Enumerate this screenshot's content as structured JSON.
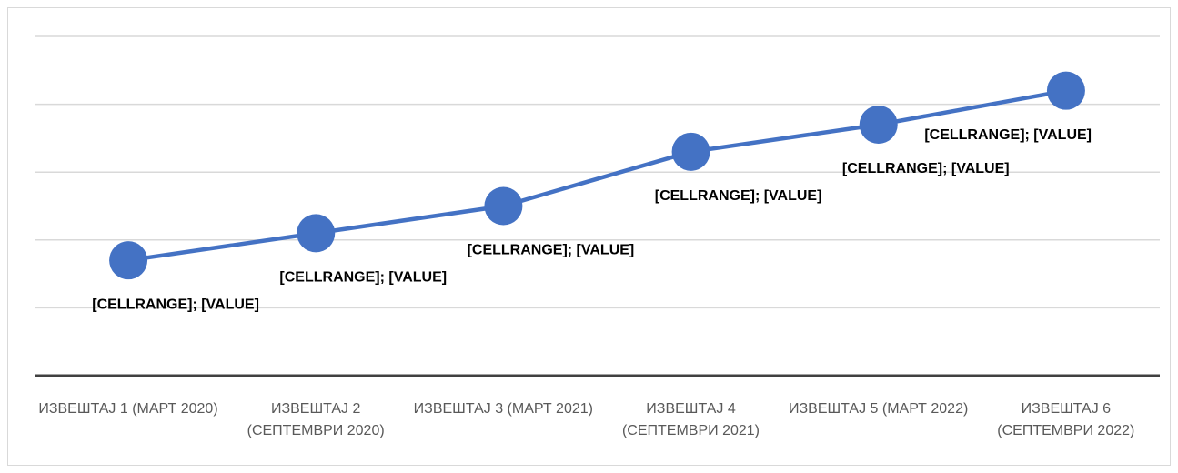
{
  "chart_data": {
    "type": "line",
    "categories": [
      "ИЗВЕШТАЈ 1 (МАРТ 2020)",
      "ИЗВЕШТАЈ 2 (СЕПТЕМВРИ 2020)",
      "ИЗВЕШТАЈ 3 (МАРТ 2021)",
      "ИЗВЕШТАЈ 4 (СЕПТЕМВРИ 2021)",
      "ИЗВЕШТАЈ 5 (МАРТ 2022)",
      "ИЗВЕШТАЈ 6 (СЕПТЕМВРИ 2022)"
    ],
    "values": [
      1.7,
      2.1,
      2.5,
      3.3,
      3.7,
      4.2
    ],
    "value_labels": [
      "[CELLRANGE]; [VALUE]",
      "[CELLRANGE]; [VALUE]",
      "[CELLRANGE]; [VALUE]",
      "[CELLRANGE]; [VALUE]",
      "[CELLRANGE]; [VALUE]",
      "[CELLRANGE]; [VALUE]"
    ],
    "color": "#4472c4",
    "ylim": [
      0,
      5
    ],
    "yticks": [
      0,
      1,
      2,
      3,
      4,
      5
    ],
    "grid": true
  }
}
